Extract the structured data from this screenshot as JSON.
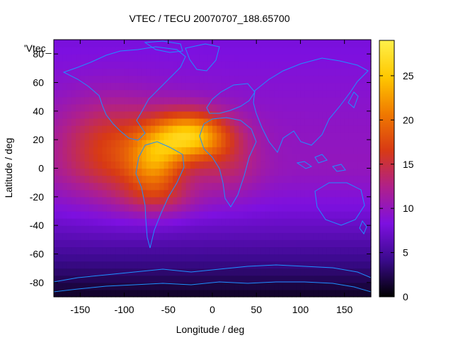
{
  "chart_data": {
    "type": "heatmap",
    "title": "VTEC / TECU 20070707_188.65700",
    "xlabel": "Longitude / deg",
    "ylabel": "Latitude / deg",
    "legend_entry": "'Vtec_",
    "xlim": [
      -180,
      180
    ],
    "ylim": [
      -90,
      90
    ],
    "x_ticks": [
      -150,
      -100,
      -50,
      0,
      50,
      100,
      150
    ],
    "y_ticks": [
      -80,
      -60,
      -40,
      -20,
      0,
      20,
      40,
      60,
      80
    ],
    "colorbar_range": [
      0,
      29
    ],
    "colorbar_ticks": [
      0,
      5,
      10,
      15,
      20,
      25
    ],
    "colormap": [
      "#000000",
      "#3a0a8c",
      "#7d10e0",
      "#b0208a",
      "#d83a14",
      "#f07a00",
      "#ffc800",
      "#fff04a"
    ],
    "grid": false,
    "coastline_color": "#1e90ff",
    "features": [
      {
        "lon": -25,
        "lat": 23,
        "sx": 30,
        "sy": 12,
        "amp": 14
      },
      {
        "lon": -65,
        "lat": 5,
        "sx": 20,
        "sy": 14,
        "amp": 7
      },
      {
        "lon": -95,
        "lat": 8,
        "sx": 50,
        "sy": 24,
        "amp": 5
      },
      {
        "lon": -120,
        "lat": 20,
        "sx": 40,
        "sy": 22,
        "amp": 3
      },
      {
        "lon": -60,
        "lat": -20,
        "sx": 30,
        "sy": 10,
        "amp": 4
      },
      {
        "lon": 20,
        "lat": 5,
        "sx": 25,
        "sy": 18,
        "amp": 3
      }
    ],
    "values": {
      "baseline_equator": 10,
      "baseline_south_pole": 1,
      "baseline_north_pole": 8,
      "peak_near_equator_atlantic": 28
    }
  }
}
